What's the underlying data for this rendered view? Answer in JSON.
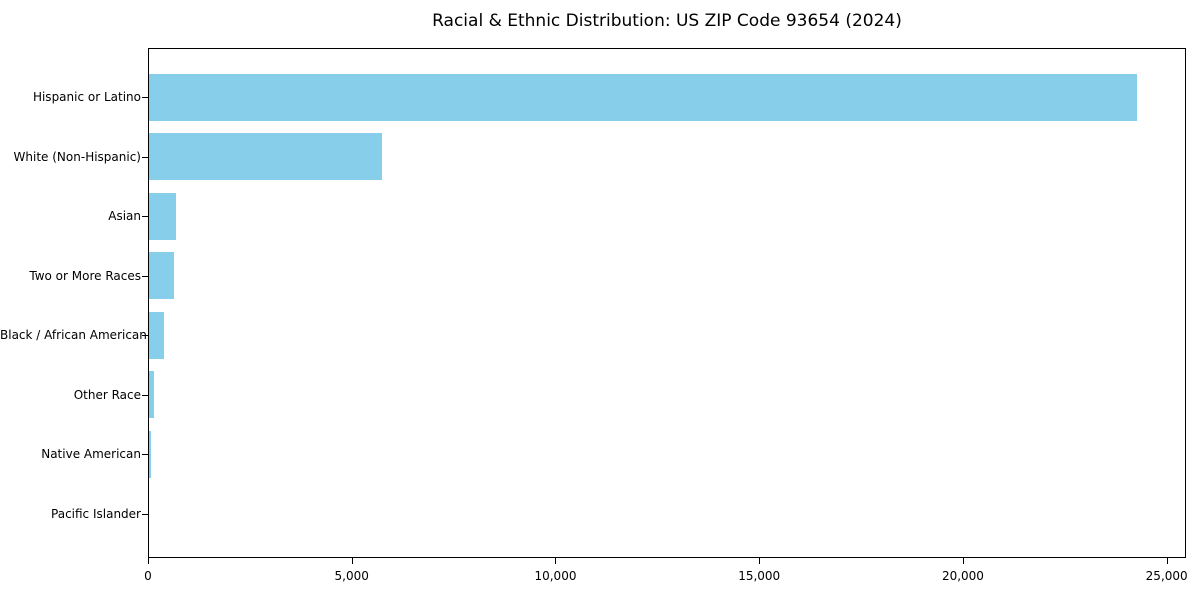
{
  "chart_data": {
    "type": "bar",
    "orientation": "horizontal",
    "title": "Racial & Ethnic Distribution: US ZIP Code 93654 (2024)",
    "categories": [
      "Hispanic or Latino",
      "White (Non-Hispanic)",
      "Asian",
      "Two or More Races",
      "Black / African American",
      "Other Race",
      "Native American",
      "Pacific Islander"
    ],
    "values": [
      24240,
      5730,
      660,
      620,
      370,
      120,
      50,
      0
    ],
    "xlabel": "",
    "ylabel": "",
    "xlim": [
      0,
      25474
    ],
    "xticks": {
      "values": [
        0,
        5000,
        10000,
        15000,
        20000,
        25000
      ],
      "labels": [
        "0",
        "5,000",
        "10,000",
        "15,000",
        "20,000",
        "25,000"
      ]
    },
    "bar_color": "#87CEEB",
    "background_color": "#ffffff",
    "spine_color": "#000000",
    "grid": false,
    "legend": "none"
  }
}
